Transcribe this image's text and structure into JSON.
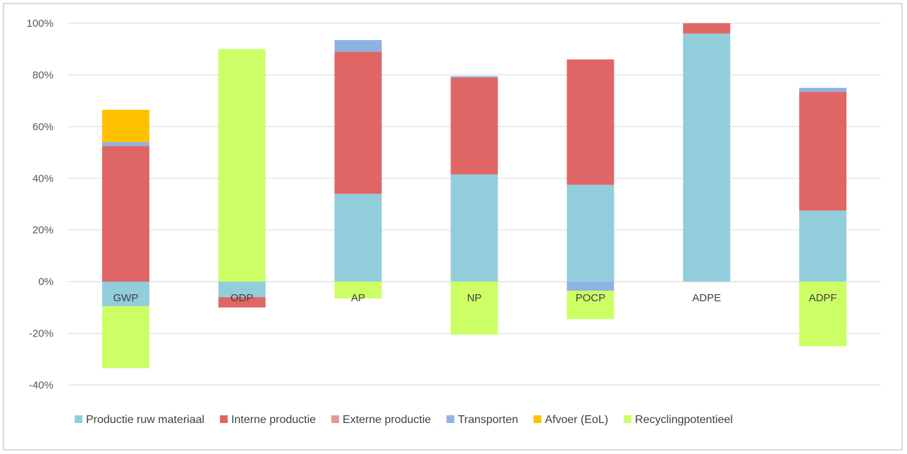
{
  "chart_data": {
    "type": "bar",
    "stacked": true,
    "categories": [
      "GWP",
      "ODP",
      "AP",
      "NP",
      "POCP",
      "ADPE",
      "ADPF"
    ],
    "series": [
      {
        "name": "Productie ruw materiaal",
        "color": "#92cddc",
        "values": [
          -9.5,
          -6,
          34,
          41.5,
          37.5,
          96,
          27.5
        ]
      },
      {
        "name": "Interne productie",
        "color": "#e06666",
        "values": [
          52.5,
          -4,
          55,
          37.5,
          48.5,
          4,
          46
        ]
      },
      {
        "name": "Externe productie",
        "color": "#e59999",
        "values": [
          0,
          0,
          0,
          0,
          0,
          0,
          0
        ]
      },
      {
        "name": "Transporten",
        "color": "#8db3e2",
        "values": [
          1.5,
          0,
          4.5,
          0.5,
          -3.5,
          0,
          1.5
        ]
      },
      {
        "name": "Afvoer (EoL)",
        "color": "#ffc000",
        "values": [
          12.5,
          0,
          0,
          0,
          0,
          0,
          0
        ]
      },
      {
        "name": "Recyclingpotentieel",
        "color": "#ccff66",
        "values": [
          -24,
          90,
          -6.5,
          -20.5,
          -11,
          0,
          -25
        ]
      }
    ],
    "ylim": [
      -40,
      100
    ],
    "yticks": [
      -40,
      -20,
      0,
      20,
      40,
      60,
      80,
      100
    ],
    "ytick_labels": [
      "-40%",
      "-20%",
      "0%",
      "20%",
      "40%",
      "60%",
      "80%",
      "100%"
    ],
    "grid": true,
    "legend_position": "bottom",
    "title": "",
    "xlabel": "",
    "ylabel": ""
  }
}
